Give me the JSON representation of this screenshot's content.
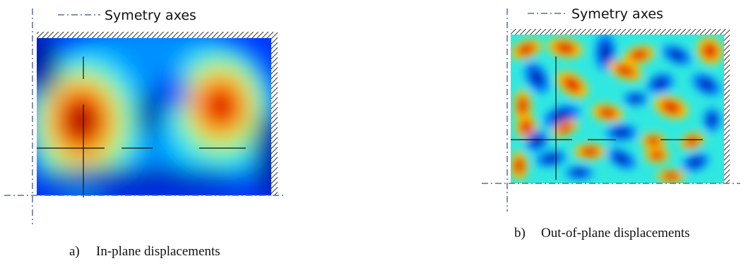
{
  "panel_a": {
    "legend_label": "Symetry axes",
    "caption_letter": "a)",
    "caption_text": "In-plane displacements"
  },
  "panel_b": {
    "legend_label": "Symetry axes",
    "caption_letter": "b)",
    "caption_text": "Out-of-plane displacements"
  },
  "colors": {
    "colormap": [
      "#00008f",
      "#0030ff",
      "#00c8ff",
      "#7fff7f",
      "#ffd000",
      "#ff3000",
      "#7f0000"
    ],
    "axis_line": "#5a6e96",
    "hatch": "#333333"
  }
}
